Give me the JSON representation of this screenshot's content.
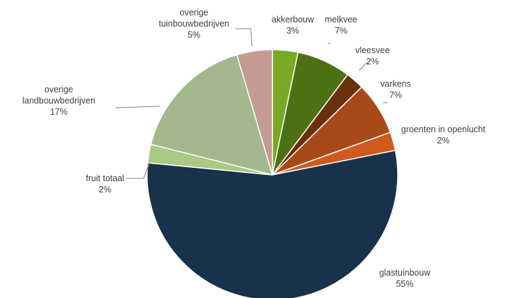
{
  "chart_data": {
    "type": "pie",
    "start_angle_deg": -90,
    "direction": "clockwise",
    "slices": [
      {
        "label": [
          "akkerbouw"
        ],
        "value_label": "3%",
        "value": 3.3,
        "color": "#77a924"
      },
      {
        "label": [
          "melkvee"
        ],
        "value_label": "7%",
        "value": 7.0,
        "color": "#4d7012"
      },
      {
        "label": [
          "vleesvee"
        ],
        "value_label": "2%",
        "value": 2.4,
        "color": "#6b300c"
      },
      {
        "label": [
          "varkens"
        ],
        "value_label": "7%",
        "value": 6.9,
        "color": "#a84a17"
      },
      {
        "label": [
          "groenten in openlucht"
        ],
        "value_label": "2%",
        "value": 2.4,
        "color": "#d05a1d"
      },
      {
        "label": [
          "glastuinbouw"
        ],
        "value_label": "55%",
        "value": 55.0,
        "color": "#17324a"
      },
      {
        "label": [
          "fruit totaal"
        ],
        "value_label": "2%",
        "value": 2.4,
        "color": "#a9c985"
      },
      {
        "label": [
          "overige",
          "landbouwbedrijven"
        ],
        "value_label": "17%",
        "value": 16.6,
        "color": "#a3b88c"
      },
      {
        "label": [
          "overige",
          "tuinbouwbedrijven"
        ],
        "value_label": "5%",
        "value": 4.6,
        "color": "#c39a94"
      }
    ]
  }
}
